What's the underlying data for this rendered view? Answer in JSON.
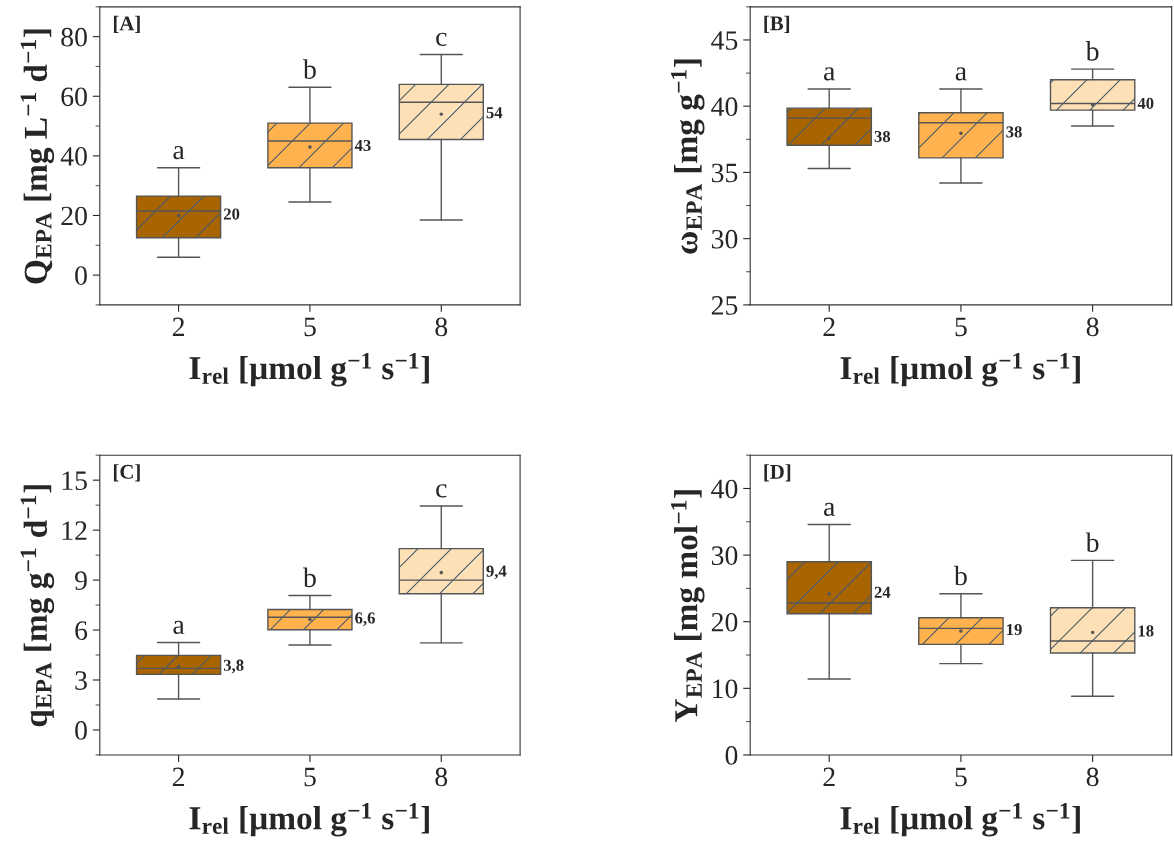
{
  "chart_data": [
    {
      "type": "box",
      "title": "[A]",
      "xlabel": "I$_{rel}$ [µmol g$^{−1}$ s$^{−1}$]",
      "ylabel": "Q$_{EPA}$ [mg L$^{−1}$ d$^{−1}$]",
      "categories": [
        "2",
        "5",
        "8"
      ],
      "colors": [
        "#a86400",
        "#ffb24d",
        "#fde0b6"
      ],
      "boxes": [
        {
          "low": 6,
          "q1": 12.5,
          "median": 21.5,
          "q3": 26.5,
          "high": 36,
          "mean": 20
        },
        {
          "low": 24.5,
          "q1": 36,
          "median": 45,
          "q3": 51,
          "high": 63,
          "mean": 43
        },
        {
          "low": 18.5,
          "q1": 45.5,
          "median": 58,
          "q3": 64,
          "high": 74,
          "mean": 54
        }
      ],
      "value_labels": [
        "20",
        "43",
        "54"
      ],
      "ylim": [
        -10,
        90
      ],
      "yticks": [
        0,
        20,
        40,
        60,
        80
      ],
      "grid": false,
      "legend": false,
      "annotations": [
        "a",
        "b",
        "c"
      ]
    },
    {
      "type": "box",
      "title": "[B]",
      "xlabel": "I$_{rel}$ [µmol g$^{−1}$ s$^{−1}$]",
      "ylabel": "ω$_{EPA}$ [mg g$^{−1}$]",
      "categories": [
        "2",
        "5",
        "8"
      ],
      "colors": [
        "#a86400",
        "#ffb24d",
        "#fde0b6"
      ],
      "boxes": [
        {
          "low": 35.3,
          "q1": 37.05,
          "median": 39.1,
          "q3": 39.85,
          "high": 41.3,
          "mean": 37.6
        },
        {
          "low": 34.2,
          "q1": 36.1,
          "median": 38.75,
          "q3": 39.5,
          "high": 41.3,
          "mean": 37.95
        },
        {
          "low": 38.5,
          "q1": 39.7,
          "median": 40.2,
          "q3": 42.0,
          "high": 42.8,
          "mean": 40.1
        }
      ],
      "value_labels": [
        "38",
        "38",
        "40"
      ],
      "ylim": [
        25,
        47.5
      ],
      "yticks": [
        25,
        30,
        35,
        40,
        45
      ],
      "grid": false,
      "legend": false,
      "annotations": [
        "a",
        "a",
        "b"
      ]
    },
    {
      "type": "box",
      "title": "[C]",
      "xlabel": "I$_{rel}$ [µmol g$^{−1}$ s$^{−1}$]",
      "ylabel": "q$_{EPA}$ [mg g$^{−1}$ d$^{−1}$]",
      "categories": [
        "2",
        "5",
        "8"
      ],
      "colors": [
        "#a86400",
        "#ffb24d",
        "#fde0b6"
      ],
      "boxes": [
        {
          "low": 1.86,
          "q1": 3.34,
          "median": 3.7,
          "q3": 4.48,
          "high": 5.25,
          "mean": 3.8
        },
        {
          "low": 5.1,
          "q1": 6.02,
          "median": 6.77,
          "q3": 7.23,
          "high": 8.07,
          "mean": 6.64
        },
        {
          "low": 5.23,
          "q1": 8.18,
          "median": 9.0,
          "q3": 10.89,
          "high": 13.45,
          "mean": 9.45
        }
      ],
      "value_labels": [
        "3,8",
        "6,6",
        "9,4"
      ],
      "ylim": [
        -1.5,
        16.5
      ],
      "yticks": [
        0,
        3,
        6,
        9,
        12,
        15
      ],
      "grid": false,
      "legend": false,
      "annotations": [
        "a",
        "b",
        "c"
      ]
    },
    {
      "type": "box",
      "title": "[D]",
      "xlabel": "I$_{rel}$ [µmol g$^{−1}$ s$^{−1}$]",
      "ylabel": "Y$_{EPA}$ [mg mol$^{−1}$]",
      "categories": [
        "2",
        "5",
        "8"
      ],
      "colors": [
        "#a86400",
        "#ffb24d",
        "#fde0b6"
      ],
      "boxes": [
        {
          "low": 11.4,
          "q1": 21.2,
          "median": 22.8,
          "q3": 29.0,
          "high": 34.6,
          "mean": 24.2
        },
        {
          "low": 13.7,
          "q1": 16.6,
          "median": 19.0,
          "q3": 20.6,
          "high": 24.2,
          "mean": 18.6
        },
        {
          "low": 8.8,
          "q1": 15.3,
          "median": 17.1,
          "q3": 22.1,
          "high": 29.2,
          "mean": 18.4
        }
      ],
      "value_labels": [
        "24",
        "19",
        "18"
      ],
      "ylim": [
        0,
        45
      ],
      "yticks": [
        0,
        10,
        20,
        30,
        40
      ],
      "grid": false,
      "legend": false,
      "annotations": [
        "a",
        "b",
        "b"
      ]
    }
  ]
}
